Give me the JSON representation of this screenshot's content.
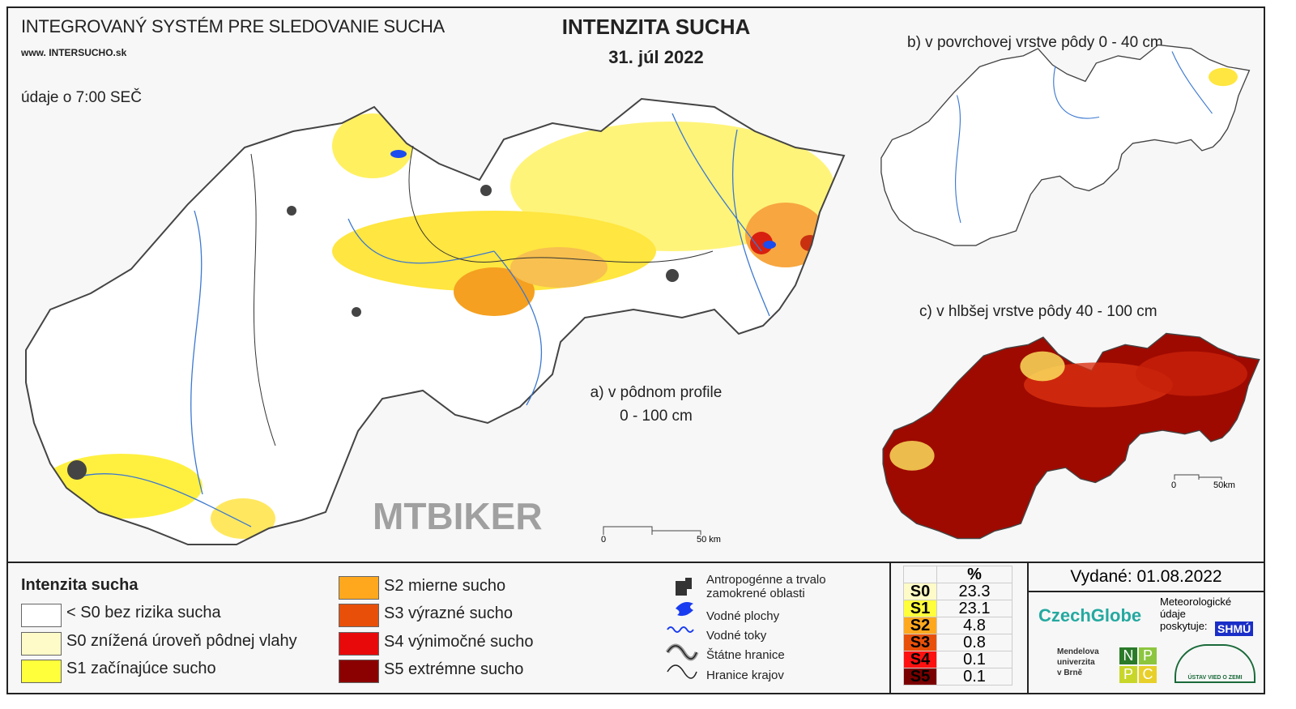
{
  "header": {
    "system_title": "INTEGROVANÝ SYSTÉM PRE SLEDOVANIE SUCHA",
    "website": "www. INTERSUCHO.sk",
    "data_time": "údaje o 7:00 SEČ",
    "title": "INTENZITA SUCHA",
    "date": "31. júl 2022"
  },
  "maps": {
    "a": {
      "label_line1": "a) v pôdnom profile",
      "label_line2": "0 - 100 cm",
      "scale_0": "0",
      "scale_50": "50 km"
    },
    "b": {
      "label": "b) v povrchovej vrstve pôdy 0 - 40 cm"
    },
    "c": {
      "label": "c) v hlbšej vrstve pôdy 40 - 100 cm",
      "scale_0": "0",
      "scale_50": "50km"
    }
  },
  "legend": {
    "title": "Intenzita sucha",
    "classes": [
      {
        "label": "< S0 bez rizika sucha",
        "color": "#ffffff"
      },
      {
        "label": "S0 znížená úroveň pôdnej vlahy",
        "color": "#fffbc8"
      },
      {
        "label": "S1 začínajúce sucho",
        "color": "#ffff3c"
      },
      {
        "label": "S2 mierne sucho",
        "color": "#ffa81e"
      },
      {
        "label": "S3 výrazné sucho",
        "color": "#e8500a"
      },
      {
        "label": "S4 výnimočné sucho",
        "color": "#e80a0a"
      },
      {
        "label": "S5 extrémne sucho",
        "color": "#8b0000"
      }
    ],
    "symbols": [
      {
        "icon": "urban-area-icon",
        "label_line1": "Antropogénne a trvalo",
        "label_line2": "zamokrené oblasti"
      },
      {
        "icon": "water-body-icon",
        "label": "Vodné plochy"
      },
      {
        "icon": "river-icon",
        "label": "Vodné toky"
      },
      {
        "icon": "state-border-icon",
        "label": "Štátne hranice"
      },
      {
        "icon": "region-border-icon",
        "label": "Hranice krajov"
      }
    ]
  },
  "stats": {
    "header": "%",
    "rows": [
      {
        "class": "S0",
        "value": "23.3",
        "color": "#fffbc8"
      },
      {
        "class": "S1",
        "value": "23.1",
        "color": "#ffff3c"
      },
      {
        "class": "S2",
        "value": "4.8",
        "color": "#ffa81e"
      },
      {
        "class": "S3",
        "value": "0.8",
        "color": "#e8500a"
      },
      {
        "class": "S4",
        "value": "0.1",
        "color": "#ff1010"
      },
      {
        "class": "S5",
        "value": "0.1",
        "color": "#7a0000"
      }
    ]
  },
  "issued": "Vydané: 01.08.2022",
  "credits": {
    "czechglobe": "CzechGlobe",
    "meteo_line1": "Meteorologické",
    "meteo_line2": "údaje",
    "meteo_line3": "poskytuje:",
    "shmu": "SHMÚ",
    "mendel_1": "Mendelova",
    "mendel_2": "univerzita",
    "mendel_3": "v Brně",
    "nppc": [
      "N",
      "P",
      "P",
      "C"
    ],
    "ustav": "ÚSTAV VIED O ZEMI"
  },
  "watermark": "MTBIKER"
}
